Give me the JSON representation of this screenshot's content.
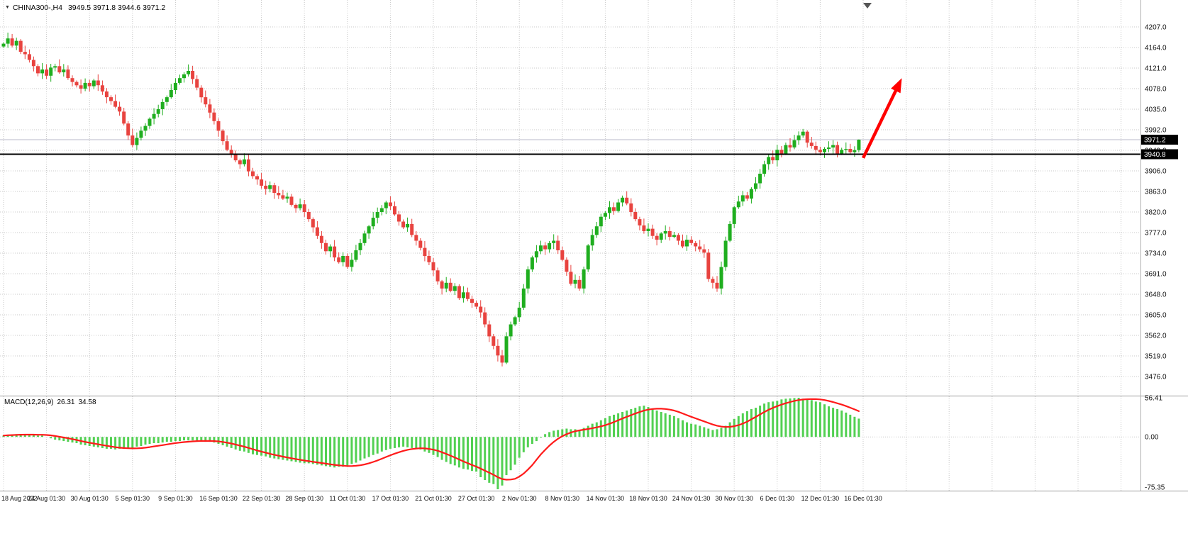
{
  "header": {
    "symbol": "CHINA300-,H4",
    "ohlc": "3949.5 3971.8 3944.6 3971.2"
  },
  "icons": {
    "dropdown": "▼"
  },
  "macd": {
    "label": "MACD(12,26,9)",
    "macd_value": "26.31",
    "signal_value": "34.58"
  },
  "price_axis": {
    "current_price_tag": "3971.2",
    "hline_tag": "3940.8"
  },
  "chart_data": {
    "type": "candlestick",
    "symbol": "CHINA300-",
    "timeframe": "H4",
    "title": "CHINA300-,H4 3949.5 3971.8 3944.6 3971.2",
    "price_ticks": [
      "4207.0",
      "4164.0",
      "4121.0",
      "4078.0",
      "4035.0",
      "3992.0",
      "3949.0",
      "3906.0",
      "3863.0",
      "3820.0",
      "3777.0",
      "3734.0",
      "3691.0",
      "3648.0",
      "3605.0",
      "3562.0",
      "3519.0",
      "3476.0"
    ],
    "time_labels": [
      "18 Aug 2022",
      "24 Aug 01:30",
      "30 Aug 01:30",
      "5 Sep 01:30",
      "9 Sep 01:30",
      "16 Sep 01:30",
      "22 Sep 01:30",
      "28 Sep 01:30",
      "11 Oct 01:30",
      "17 Oct 01:30",
      "21 Oct 01:30",
      "27 Oct 01:30",
      "2 Nov 01:30",
      "8 Nov 01:30",
      "14 Nov 01:30",
      "18 Nov 01:30",
      "24 Nov 01:30",
      "30 Nov 01:30",
      "6 Dec 01:30",
      "12 Dec 01:30",
      "16 Dec 01:30"
    ],
    "bars_per_time_gridline": 10,
    "closes": [
      4172,
      4183,
      4168,
      4178,
      4155,
      4150,
      4138,
      4125,
      4110,
      4118,
      4105,
      4122,
      4125,
      4112,
      4118,
      4100,
      4092,
      4085,
      4078,
      4090,
      4083,
      4095,
      4085,
      4072,
      4060,
      4052,
      4040,
      4030,
      4005,
      3980,
      3960,
      3975,
      3990,
      4000,
      4015,
      4025,
      4035,
      4050,
      4060,
      4075,
      4090,
      4100,
      4108,
      4115,
      4098,
      4080,
      4060,
      4045,
      4028,
      4010,
      3990,
      3968,
      3950,
      3942,
      3928,
      3920,
      3930,
      3905,
      3895,
      3888,
      3875,
      3868,
      3876,
      3860,
      3855,
      3848,
      3852,
      3835,
      3828,
      3836,
      3820,
      3805,
      3788,
      3770,
      3755,
      3738,
      3748,
      3725,
      3715,
      3728,
      3705,
      3720,
      3740,
      3755,
      3775,
      3790,
      3808,
      3820,
      3828,
      3840,
      3832,
      3815,
      3800,
      3788,
      3795,
      3772,
      3760,
      3745,
      3728,
      3715,
      3698,
      3675,
      3660,
      3672,
      3655,
      3665,
      3640,
      3652,
      3638,
      3630,
      3622,
      3610,
      3585,
      3560,
      3540,
      3520,
      3505,
      3560,
      3585,
      3600,
      3620,
      3660,
      3700,
      3725,
      3738,
      3750,
      3742,
      3755,
      3760,
      3740,
      3720,
      3695,
      3670,
      3678,
      3660,
      3700,
      3750,
      3772,
      3790,
      3810,
      3818,
      3830,
      3822,
      3840,
      3850,
      3838,
      3820,
      3805,
      3792,
      3780,
      3785,
      3770,
      3762,
      3775,
      3780,
      3768,
      3772,
      3760,
      3748,
      3762,
      3755,
      3748,
      3742,
      3735,
      3680,
      3672,
      3660,
      3705,
      3760,
      3795,
      3830,
      3842,
      3855,
      3848,
      3868,
      3880,
      3900,
      3920,
      3935,
      3928,
      3950,
      3942,
      3960,
      3955,
      3970,
      3980,
      3988,
      3965,
      3958,
      3950,
      3945,
      3952,
      3955,
      3960,
      3942,
      3950,
      3952,
      3945,
      3949.5,
      3971.2
    ],
    "last_candle": {
      "open": 3949.5,
      "high": 3971.8,
      "low": 3944.6,
      "close": 3971.2
    },
    "bid_price": 3971.2,
    "hline_price": 3940.8,
    "macd_hist": [
      2,
      3,
      3,
      4,
      4,
      4,
      3,
      3,
      2,
      2,
      0,
      -2,
      -4,
      -5,
      -6,
      -7,
      -8,
      -9,
      -11,
      -12,
      -13,
      -14,
      -15,
      -16,
      -17,
      -17,
      -18,
      -17,
      -17,
      -16,
      -16,
      -14,
      -13,
      -11,
      -10,
      -9,
      -9,
      -8,
      -7,
      -7,
      -6,
      -6,
      -5,
      -5,
      -5,
      -5,
      -6,
      -7,
      -7,
      -8,
      -10,
      -12,
      -14,
      -16,
      -18,
      -20,
      -21,
      -23,
      -25,
      -26,
      -27,
      -28,
      -30,
      -31,
      -32,
      -33,
      -34,
      -35,
      -36,
      -37,
      -38,
      -38,
      -39,
      -40,
      -41,
      -42,
      -43,
      -44,
      -43,
      -43,
      -42,
      -39,
      -37,
      -34,
      -31,
      -29,
      -26,
      -24,
      -21,
      -19,
      -17,
      -16,
      -15,
      -14,
      -15,
      -16,
      -17,
      -18,
      -21,
      -23,
      -26,
      -29,
      -33,
      -36,
      -39,
      -41,
      -44,
      -46,
      -47,
      -49,
      -50,
      -58,
      -62,
      -66,
      -68,
      -75.35,
      -70,
      -55,
      -48,
      -40,
      -30,
      -22,
      -15,
      -10,
      -6,
      -1,
      4,
      7,
      9,
      10,
      11,
      12,
      11,
      11,
      10,
      13,
      16,
      19,
      21,
      24,
      27,
      30,
      32,
      34,
      36,
      38,
      40,
      42,
      44,
      45,
      43,
      40,
      38,
      36,
      34,
      32,
      30,
      27,
      24,
      21,
      19,
      18,
      16,
      14,
      12,
      10,
      11,
      13,
      16,
      21,
      26,
      30,
      34,
      37,
      40,
      42,
      45,
      48,
      50,
      51,
      52,
      54,
      55,
      55.5,
      56,
      56.41,
      55,
      54,
      53,
      51,
      50,
      47,
      44,
      42,
      40,
      38,
      35,
      32,
      29,
      26.31
    ],
    "macd_axis_labels": [
      "56.41",
      "0.00",
      "-75.35"
    ],
    "macd_current": {
      "macd": 26.31,
      "signal": 34.58
    },
    "annotations": [
      {
        "type": "arrow",
        "from_bar": 200,
        "from_price": 3933,
        "to_bar": 209,
        "to_price": 4100,
        "color": "#ff0000"
      }
    ],
    "colors": {
      "bull": "#1fae1f",
      "bear": "#e8433f",
      "grid": "#c9c9c9",
      "macd_hist": "#52d052",
      "signal": "#ff1a1a",
      "bid_line": "#b9bac9",
      "hline": "#000000",
      "tag_bg": "#000000",
      "tag_fg": "#ffffff",
      "axis_text": "#111111"
    }
  }
}
